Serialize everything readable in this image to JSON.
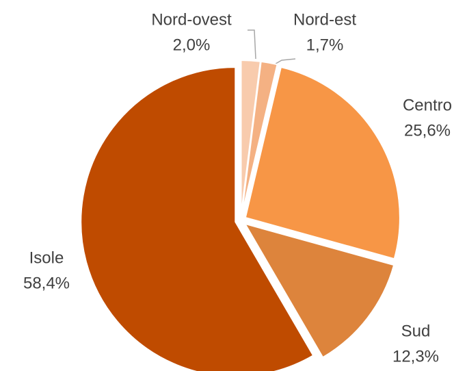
{
  "chart_data": {
    "type": "pie",
    "categories": [
      "Nord-ovest",
      "Nord-est",
      "Centro",
      "Sud",
      "Isole"
    ],
    "values": [
      2.0,
      1.7,
      25.6,
      12.3,
      58.4
    ],
    "value_labels": [
      "2,0%",
      "1,7%",
      "25,6%",
      "12,3%",
      "58,4%"
    ],
    "colors": [
      "#f8cbad",
      "#f4b183",
      "#f79646",
      "#dd843c",
      "#bf4b00"
    ]
  }
}
